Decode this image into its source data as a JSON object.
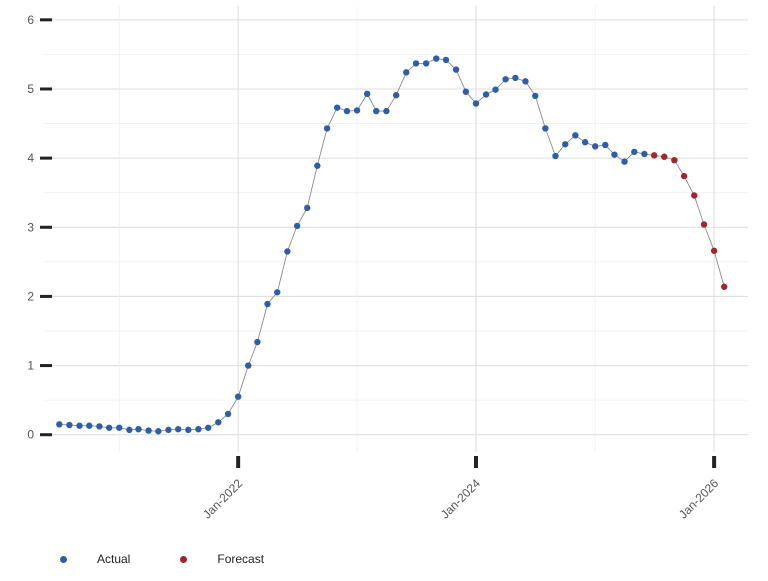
{
  "chart_data": {
    "type": "scatter",
    "title": "",
    "xlabel": "",
    "ylabel": "",
    "ylim": [
      -0.25,
      6.2
    ],
    "xlim": [
      "2020-05-15",
      "2026-04-15"
    ],
    "y_ticks": [
      0,
      1,
      2,
      3,
      4,
      5,
      6
    ],
    "x_ticks": [
      {
        "date": "2022-01-01",
        "label": "Jan-2022"
      },
      {
        "date": "2024-01-01",
        "label": "Jan-2024"
      },
      {
        "date": "2026-01-01",
        "label": "Jan-2026"
      }
    ],
    "grid": true,
    "legend_position": "bottom-left",
    "series": [
      {
        "name": "Actual",
        "color": "#2e5fa6",
        "points": [
          [
            "2020-07-01",
            0.15
          ],
          [
            "2020-08-01",
            0.14
          ],
          [
            "2020-09-01",
            0.13
          ],
          [
            "2020-10-01",
            0.13
          ],
          [
            "2020-11-01",
            0.12
          ],
          [
            "2020-12-01",
            0.1
          ],
          [
            "2021-01-01",
            0.1
          ],
          [
            "2021-02-01",
            0.07
          ],
          [
            "2021-03-01",
            0.08
          ],
          [
            "2021-04-01",
            0.06
          ],
          [
            "2021-05-01",
            0.05
          ],
          [
            "2021-06-01",
            0.07
          ],
          [
            "2021-07-01",
            0.08
          ],
          [
            "2021-08-01",
            0.07
          ],
          [
            "2021-09-01",
            0.08
          ],
          [
            "2021-10-01",
            0.1
          ],
          [
            "2021-11-01",
            0.18
          ],
          [
            "2021-12-01",
            0.3
          ],
          [
            "2022-01-01",
            0.55
          ],
          [
            "2022-02-01",
            1.0
          ],
          [
            "2022-03-01",
            1.34
          ],
          [
            "2022-04-01",
            1.89
          ],
          [
            "2022-05-01",
            2.06
          ],
          [
            "2022-06-01",
            2.65
          ],
          [
            "2022-07-01",
            3.02
          ],
          [
            "2022-08-01",
            3.28
          ],
          [
            "2022-09-01",
            3.89
          ],
          [
            "2022-10-01",
            4.43
          ],
          [
            "2022-11-01",
            4.73
          ],
          [
            "2022-12-01",
            4.68
          ],
          [
            "2023-01-01",
            4.69
          ],
          [
            "2023-02-01",
            4.93
          ],
          [
            "2023-03-01",
            4.68
          ],
          [
            "2023-04-01",
            4.68
          ],
          [
            "2023-05-01",
            4.91
          ],
          [
            "2023-06-01",
            5.24
          ],
          [
            "2023-07-01",
            5.37
          ],
          [
            "2023-08-01",
            5.37
          ],
          [
            "2023-09-01",
            5.44
          ],
          [
            "2023-10-01",
            5.42
          ],
          [
            "2023-11-01",
            5.28
          ],
          [
            "2023-12-01",
            4.96
          ],
          [
            "2024-01-01",
            4.79
          ],
          [
            "2024-02-01",
            4.92
          ],
          [
            "2024-03-01",
            4.99
          ],
          [
            "2024-04-01",
            5.14
          ],
          [
            "2024-05-01",
            5.16
          ],
          [
            "2024-06-01",
            5.11
          ],
          [
            "2024-07-01",
            4.9
          ],
          [
            "2024-08-01",
            4.43
          ],
          [
            "2024-09-01",
            4.03
          ],
          [
            "2024-10-01",
            4.2
          ],
          [
            "2024-11-01",
            4.33
          ],
          [
            "2024-12-01",
            4.23
          ],
          [
            "2025-01-01",
            4.17
          ],
          [
            "2025-02-01",
            4.19
          ],
          [
            "2025-03-01",
            4.05
          ],
          [
            "2025-04-01",
            3.95
          ],
          [
            "2025-05-01",
            4.09
          ],
          [
            "2025-06-01",
            4.06
          ]
        ]
      },
      {
        "name": "Forecast",
        "color": "#a3242c",
        "points": [
          [
            "2025-07-01",
            4.04
          ],
          [
            "2025-08-01",
            4.02
          ],
          [
            "2025-09-01",
            3.97
          ],
          [
            "2025-10-01",
            3.74
          ],
          [
            "2025-11-01",
            3.46
          ],
          [
            "2025-12-01",
            3.04
          ],
          [
            "2026-01-01",
            2.66
          ],
          [
            "2026-02-01",
            2.14
          ]
        ]
      }
    ]
  },
  "legend": {
    "actual_label": "Actual",
    "forecast_label": "Forecast"
  }
}
